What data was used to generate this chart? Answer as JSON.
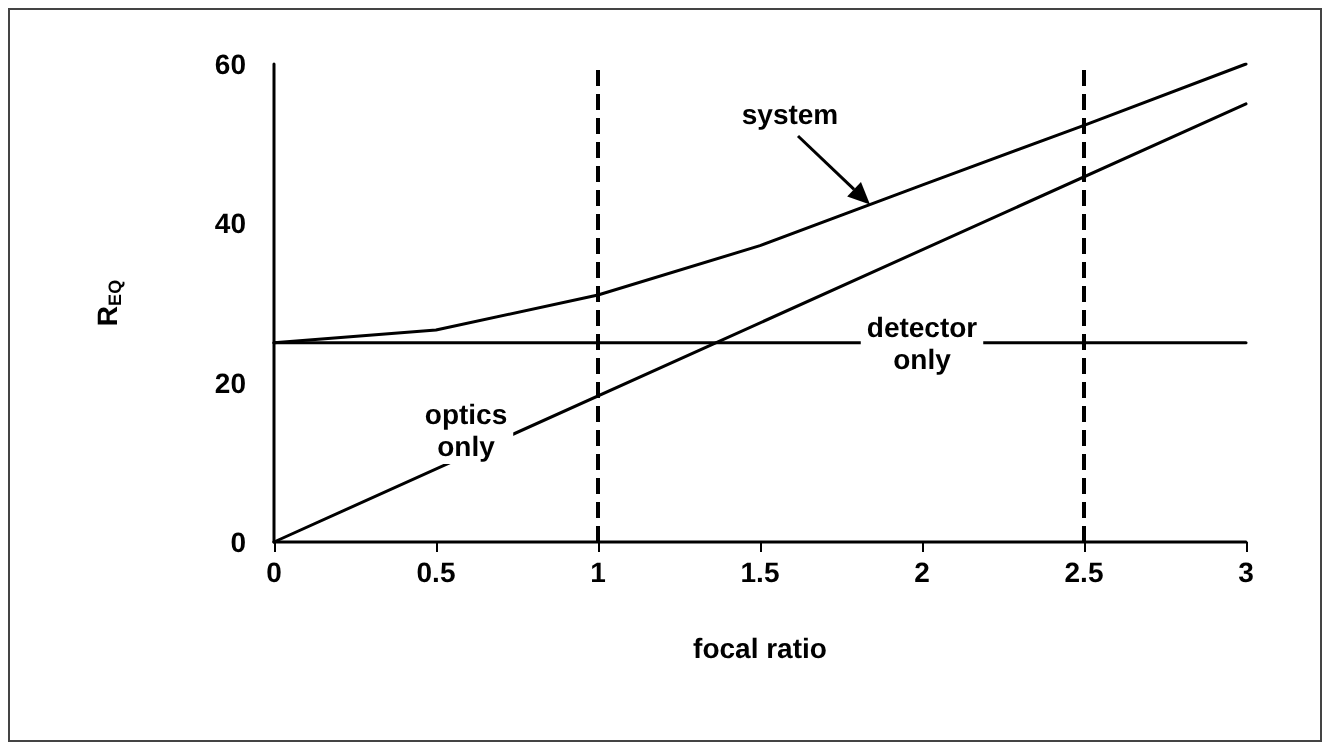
{
  "chart_data": {
    "type": "line",
    "xlabel": "focal ratio",
    "ylabel": "R$_{EQ}$",
    "xlim": [
      0,
      3
    ],
    "xticks": [
      0,
      0.5,
      1,
      1.5,
      2,
      2.5,
      3
    ],
    "ylim": [
      0,
      60
    ],
    "yticks": [
      0,
      20,
      40,
      60
    ],
    "grid": false,
    "marker": "none",
    "line_style": "solid",
    "series": [
      {
        "color": "#000000",
        "x": [
          0,
          0.5,
          1,
          1.5,
          2,
          2.5,
          3
        ],
        "values": [
          25,
          26.6,
          31,
          37.2,
          44.8,
          52.3,
          60
        ]
      },
      {
        "color": "#000000",
        "x": [
          0,
          3
        ],
        "values": [
          0,
          55
        ]
      },
      {
        "color": "#000000",
        "x": [
          0,
          3
        ],
        "values": [
          25,
          25
        ]
      }
    ],
    "ref_lines": [
      {
        "axis": "x",
        "value": 1,
        "color": "#000000",
        "line_style": "dashed"
      },
      {
        "axis": "x",
        "value": 2.5,
        "color": "#000000",
        "line_style": "dashed"
      }
    ],
    "annotations": [
      "system",
      "optics\nonly",
      {
        "text": "detector\nonly",
        "x": 2,
        "y": 25
      }
    ]
  }
}
